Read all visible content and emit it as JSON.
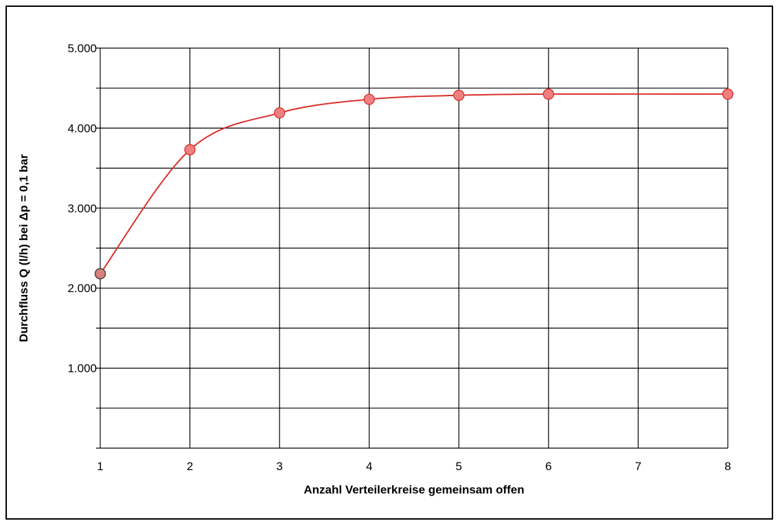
{
  "chart_data": {
    "type": "line",
    "title": "",
    "xlabel": "Anzahl Verteilerkreise gemeinsam offen",
    "ylabel": "Durchfluss Q (l/h) bei Δp = 0,1 bar",
    "categories": [
      "1",
      "2",
      "3",
      "4",
      "5",
      "6",
      "7",
      "8"
    ],
    "yticks": [
      {
        "value": 1000,
        "label": "1.000"
      },
      {
        "value": 2000,
        "label": "2.000"
      },
      {
        "value": 3000,
        "label": "3.000"
      },
      {
        "value": 4000,
        "label": "4.000"
      },
      {
        "value": 5000,
        "label": "5.000"
      }
    ],
    "ylim": [
      0,
      5000
    ],
    "grid": true,
    "gridline_step": 500,
    "series": [
      {
        "x": [
          1,
          2,
          3,
          4,
          5,
          6,
          8
        ],
        "values": [
          2180,
          3730,
          4190,
          4360,
          4410,
          4425,
          4425
        ]
      }
    ],
    "colors": {
      "line": "#d9302a",
      "marker_fill": "#f08080",
      "first_marker_fill": "#d98080",
      "first_marker_stroke": "#333333",
      "grid": "#000000"
    }
  }
}
